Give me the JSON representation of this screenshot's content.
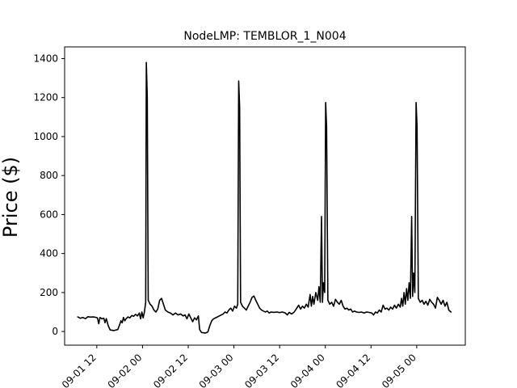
{
  "chart_data": {
    "type": "line",
    "title": "NodeLMP: TEMBLOR_1_N004",
    "xlabel": "",
    "ylabel": "Price ($)",
    "ylim": [
      -70,
      1460
    ],
    "yticks": [
      0,
      200,
      400,
      600,
      800,
      1000,
      1200,
      1400
    ],
    "xlim": [
      "2023-09-01 03:33",
      "2023-09-05 12:45"
    ],
    "xticks": [
      {
        "t": "2023-09-01 12:00",
        "label": "09-01 12"
      },
      {
        "t": "2023-09-02 00:00",
        "label": "09-02 00"
      },
      {
        "t": "2023-09-02 12:00",
        "label": "09-02 12"
      },
      {
        "t": "2023-09-03 00:00",
        "label": "09-03 00"
      },
      {
        "t": "2023-09-03 12:00",
        "label": "09-03 12"
      },
      {
        "t": "2023-09-04 00:00",
        "label": "09-04 00"
      },
      {
        "t": "2023-09-04 12:00",
        "label": "09-04 12"
      },
      {
        "t": "2023-09-05 00:00",
        "label": "09-05 00"
      }
    ],
    "grid": false,
    "series": [
      {
        "color": "#000000",
        "points": [
          [
            "2023-09-01 07:00",
            75
          ],
          [
            "2023-09-01 07:40",
            68
          ],
          [
            "2023-09-01 08:20",
            72
          ],
          [
            "2023-09-01 09:00",
            66
          ],
          [
            "2023-09-01 09:40",
            76
          ],
          [
            "2023-09-01 10:20",
            74
          ],
          [
            "2023-09-01 11:00",
            75
          ],
          [
            "2023-09-01 11:40",
            73
          ],
          [
            "2023-09-01 12:10",
            70
          ],
          [
            "2023-09-01 12:30",
            40
          ],
          [
            "2023-09-01 12:50",
            72
          ],
          [
            "2023-09-01 13:20",
            65
          ],
          [
            "2023-09-01 13:50",
            68
          ],
          [
            "2023-09-01 14:10",
            45
          ],
          [
            "2023-09-01 14:30",
            66
          ],
          [
            "2023-09-01 15:00",
            30
          ],
          [
            "2023-09-01 15:30",
            8
          ],
          [
            "2023-09-01 16:30",
            5
          ],
          [
            "2023-09-01 17:30",
            10
          ],
          [
            "2023-09-01 18:00",
            35
          ],
          [
            "2023-09-01 18:20",
            55
          ],
          [
            "2023-09-01 18:40",
            45
          ],
          [
            "2023-09-01 19:00",
            72
          ],
          [
            "2023-09-01 19:20",
            55
          ],
          [
            "2023-09-01 19:40",
            65
          ],
          [
            "2023-09-01 20:10",
            75
          ],
          [
            "2023-09-01 20:40",
            70
          ],
          [
            "2023-09-01 21:10",
            82
          ],
          [
            "2023-09-01 21:40",
            78
          ],
          [
            "2023-09-01 22:10",
            88
          ],
          [
            "2023-09-01 22:40",
            80
          ],
          [
            "2023-09-01 23:10",
            95
          ],
          [
            "2023-09-01 23:30",
            65
          ],
          [
            "2023-09-01 23:50",
            100
          ],
          [
            "2023-09-02 00:10",
            70
          ],
          [
            "2023-09-02 00:30",
            100
          ],
          [
            "2023-09-02 00:50",
            150
          ],
          [
            "2023-09-02 01:00",
            1380
          ],
          [
            "2023-09-02 01:15",
            1200
          ],
          [
            "2023-09-02 01:30",
            160
          ],
          [
            "2023-09-02 02:00",
            140
          ],
          [
            "2023-09-02 02:30",
            130
          ],
          [
            "2023-09-02 03:00",
            110
          ],
          [
            "2023-09-02 03:30",
            100
          ],
          [
            "2023-09-02 04:00",
            115
          ],
          [
            "2023-09-02 04:30",
            160
          ],
          [
            "2023-09-02 05:00",
            170
          ],
          [
            "2023-09-02 05:30",
            140
          ],
          [
            "2023-09-02 06:00",
            110
          ],
          [
            "2023-09-02 06:40",
            100
          ],
          [
            "2023-09-02 07:20",
            95
          ],
          [
            "2023-09-02 08:00",
            85
          ],
          [
            "2023-09-02 08:40",
            95
          ],
          [
            "2023-09-02 09:20",
            85
          ],
          [
            "2023-09-02 10:00",
            90
          ],
          [
            "2023-09-02 10:40",
            80
          ],
          [
            "2023-09-02 11:10",
            85
          ],
          [
            "2023-09-02 11:40",
            65
          ],
          [
            "2023-09-02 12:10",
            90
          ],
          [
            "2023-09-02 12:40",
            70
          ],
          [
            "2023-09-02 13:10",
            50
          ],
          [
            "2023-09-02 13:40",
            70
          ],
          [
            "2023-09-02 14:10",
            60
          ],
          [
            "2023-09-02 14:40",
            80
          ],
          [
            "2023-09-02 15:00",
            10
          ],
          [
            "2023-09-02 15:30",
            -5
          ],
          [
            "2023-09-02 16:30",
            -8
          ],
          [
            "2023-09-02 17:10",
            -2
          ],
          [
            "2023-09-02 17:40",
            30
          ],
          [
            "2023-09-02 18:10",
            55
          ],
          [
            "2023-09-02 18:40",
            65
          ],
          [
            "2023-09-02 19:10",
            70
          ],
          [
            "2023-09-02 19:40",
            75
          ],
          [
            "2023-09-02 20:10",
            80
          ],
          [
            "2023-09-02 20:40",
            85
          ],
          [
            "2023-09-02 21:10",
            90
          ],
          [
            "2023-09-02 21:40",
            100
          ],
          [
            "2023-09-02 22:10",
            95
          ],
          [
            "2023-09-02 22:40",
            110
          ],
          [
            "2023-09-02 23:10",
            120
          ],
          [
            "2023-09-02 23:40",
            105
          ],
          [
            "2023-09-03 00:10",
            130
          ],
          [
            "2023-09-03 00:40",
            120
          ],
          [
            "2023-09-03 01:00",
            140
          ],
          [
            "2023-09-03 01:15",
            1285
          ],
          [
            "2023-09-03 01:30",
            1150
          ],
          [
            "2023-09-03 01:45",
            150
          ],
          [
            "2023-09-03 02:15",
            130
          ],
          [
            "2023-09-03 02:45",
            120
          ],
          [
            "2023-09-03 03:15",
            110
          ],
          [
            "2023-09-03 03:45",
            130
          ],
          [
            "2023-09-03 04:15",
            150
          ],
          [
            "2023-09-03 04:45",
            175
          ],
          [
            "2023-09-03 05:15",
            182
          ],
          [
            "2023-09-03 05:45",
            160
          ],
          [
            "2023-09-03 06:15",
            140
          ],
          [
            "2023-09-03 06:45",
            120
          ],
          [
            "2023-09-03 07:15",
            110
          ],
          [
            "2023-09-03 07:45",
            105
          ],
          [
            "2023-09-03 08:15",
            100
          ],
          [
            "2023-09-03 08:45",
            105
          ],
          [
            "2023-09-03 09:15",
            95
          ],
          [
            "2023-09-03 09:45",
            100
          ],
          [
            "2023-09-03 10:30",
            98
          ],
          [
            "2023-09-03 11:15",
            100
          ],
          [
            "2023-09-03 12:00",
            97
          ],
          [
            "2023-09-03 12:45",
            100
          ],
          [
            "2023-09-03 13:30",
            95
          ],
          [
            "2023-09-03 14:00",
            85
          ],
          [
            "2023-09-03 14:30",
            98
          ],
          [
            "2023-09-03 15:10",
            90
          ],
          [
            "2023-09-03 15:50",
            100
          ],
          [
            "2023-09-03 16:30",
            120
          ],
          [
            "2023-09-03 17:00",
            135
          ],
          [
            "2023-09-03 17:30",
            115
          ],
          [
            "2023-09-03 18:00",
            130
          ],
          [
            "2023-09-03 18:30",
            120
          ],
          [
            "2023-09-03 19:00",
            140
          ],
          [
            "2023-09-03 19:30",
            125
          ],
          [
            "2023-09-03 20:00",
            190
          ],
          [
            "2023-09-03 20:20",
            130
          ],
          [
            "2023-09-03 20:40",
            180
          ],
          [
            "2023-09-03 21:00",
            140
          ],
          [
            "2023-09-03 21:30",
            200
          ],
          [
            "2023-09-03 22:00",
            160
          ],
          [
            "2023-09-03 22:20",
            230
          ],
          [
            "2023-09-03 22:40",
            150
          ],
          [
            "2023-09-03 23:00",
            590
          ],
          [
            "2023-09-03 23:15",
            150
          ],
          [
            "2023-09-03 23:30",
            250
          ],
          [
            "2023-09-03 23:50",
            200
          ],
          [
            "2023-09-04 00:05",
            1175
          ],
          [
            "2023-09-04 00:20",
            1050
          ],
          [
            "2023-09-04 00:40",
            160
          ],
          [
            "2023-09-04 01:10",
            140
          ],
          [
            "2023-09-04 01:40",
            150
          ],
          [
            "2023-09-04 02:10",
            130
          ],
          [
            "2023-09-04 02:40",
            165
          ],
          [
            "2023-09-04 03:10",
            150
          ],
          [
            "2023-09-04 03:40",
            140
          ],
          [
            "2023-09-04 04:10",
            160
          ],
          [
            "2023-09-04 04:40",
            130
          ],
          [
            "2023-09-04 05:10",
            115
          ],
          [
            "2023-09-04 05:40",
            120
          ],
          [
            "2023-09-04 06:10",
            110
          ],
          [
            "2023-09-04 06:40",
            115
          ],
          [
            "2023-09-04 07:10",
            100
          ],
          [
            "2023-09-04 07:40",
            105
          ],
          [
            "2023-09-04 08:10",
            100
          ],
          [
            "2023-09-04 08:50",
            98
          ],
          [
            "2023-09-04 09:30",
            100
          ],
          [
            "2023-09-04 10:10",
            95
          ],
          [
            "2023-09-04 10:50",
            100
          ],
          [
            "2023-09-04 11:30",
            98
          ],
          [
            "2023-09-04 12:10",
            95
          ],
          [
            "2023-09-04 12:40",
            85
          ],
          [
            "2023-09-04 13:10",
            100
          ],
          [
            "2023-09-04 13:40",
            95
          ],
          [
            "2023-09-04 14:10",
            110
          ],
          [
            "2023-09-04 14:40",
            100
          ],
          [
            "2023-09-04 15:10",
            135
          ],
          [
            "2023-09-04 15:40",
            115
          ],
          [
            "2023-09-04 16:10",
            120
          ],
          [
            "2023-09-04 16:40",
            110
          ],
          [
            "2023-09-04 17:10",
            125
          ],
          [
            "2023-09-04 17:40",
            115
          ],
          [
            "2023-09-04 18:10",
            135
          ],
          [
            "2023-09-04 18:40",
            120
          ],
          [
            "2023-09-04 19:10",
            140
          ],
          [
            "2023-09-04 19:40",
            125
          ],
          [
            "2023-09-04 20:00",
            170
          ],
          [
            "2023-09-04 20:20",
            130
          ],
          [
            "2023-09-04 20:40",
            200
          ],
          [
            "2023-09-04 21:00",
            140
          ],
          [
            "2023-09-04 21:20",
            220
          ],
          [
            "2023-09-04 21:40",
            160
          ],
          [
            "2023-09-04 22:00",
            250
          ],
          [
            "2023-09-04 22:20",
            170
          ],
          [
            "2023-09-04 22:40",
            590
          ],
          [
            "2023-09-04 22:55",
            180
          ],
          [
            "2023-09-04 23:10",
            300
          ],
          [
            "2023-09-04 23:30",
            200
          ],
          [
            "2023-09-04 23:50",
            1175
          ],
          [
            "2023-09-05 00:05",
            1050
          ],
          [
            "2023-09-05 00:25",
            170
          ],
          [
            "2023-09-05 00:55",
            150
          ],
          [
            "2023-09-05 01:25",
            160
          ],
          [
            "2023-09-05 01:55",
            140
          ],
          [
            "2023-09-05 02:25",
            155
          ],
          [
            "2023-09-05 02:55",
            135
          ],
          [
            "2023-09-05 03:25",
            165
          ],
          [
            "2023-09-05 03:55",
            150
          ],
          [
            "2023-09-05 04:25",
            140
          ],
          [
            "2023-09-05 04:55",
            120
          ],
          [
            "2023-09-05 05:25",
            175
          ],
          [
            "2023-09-05 05:55",
            160
          ],
          [
            "2023-09-05 06:25",
            140
          ],
          [
            "2023-09-05 06:55",
            160
          ],
          [
            "2023-09-05 07:25",
            130
          ],
          [
            "2023-09-05 07:55",
            150
          ],
          [
            "2023-09-05 08:25",
            110
          ],
          [
            "2023-09-05 09:00",
            100
          ]
        ]
      }
    ]
  }
}
